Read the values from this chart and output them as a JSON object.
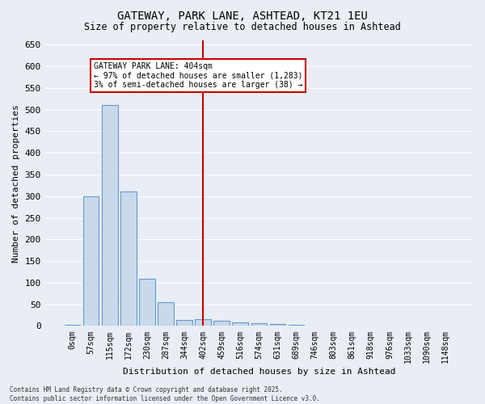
{
  "title1": "GATEWAY, PARK LANE, ASHTEAD, KT21 1EU",
  "title2": "Size of property relative to detached houses in Ashtead",
  "xlabel": "Distribution of detached houses by size in Ashtead",
  "ylabel": "Number of detached properties",
  "footnote1": "Contains HM Land Registry data © Crown copyright and database right 2025.",
  "footnote2": "Contains public sector information licensed under the Open Government Licence v3.0.",
  "bin_labels": [
    "0sqm",
    "57sqm",
    "115sqm",
    "172sqm",
    "230sqm",
    "287sqm",
    "344sqm",
    "402sqm",
    "459sqm",
    "516sqm",
    "574sqm",
    "631sqm",
    "689sqm",
    "746sqm",
    "803sqm",
    "861sqm",
    "918sqm",
    "976sqm",
    "1033sqm",
    "1090sqm",
    "1148sqm"
  ],
  "bar_values": [
    3,
    300,
    510,
    310,
    110,
    55,
    13,
    15,
    12,
    9,
    7,
    5,
    2,
    1,
    0,
    0,
    1,
    0,
    0,
    1,
    0
  ],
  "bar_color": "#c9d9ec",
  "bar_edge_color": "#6699cc",
  "vline_x_index": 7,
  "vline_color": "#cc0000",
  "annotation_title": "GATEWAY PARK LANE: 404sqm",
  "annotation_line1": "← 97% of detached houses are smaller (1,283)",
  "annotation_line2": "3% of semi-detached houses are larger (38) →",
  "annotation_box_color": "#cc0000",
  "ylim": [
    0,
    660
  ],
  "yticks": [
    0,
    50,
    100,
    150,
    200,
    250,
    300,
    350,
    400,
    450,
    500,
    550,
    600,
    650
  ],
  "background_color": "#e8eef4",
  "grid_color": "#ffffff",
  "figsize": [
    6.0,
    5.0
  ],
  "dpi": 100
}
